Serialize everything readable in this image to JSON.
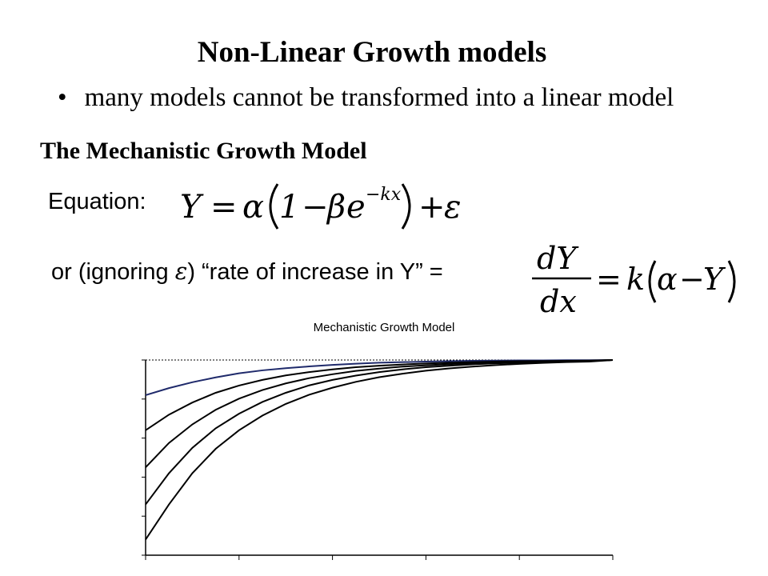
{
  "slide": {
    "title": "Non-Linear Growth models",
    "bullet_symbol": "•",
    "bullet_text": "many models cannot be transformed into a linear model",
    "subtitle": "The Mechanistic Growth Model",
    "equation_label": "Equation:",
    "rate_prefix": "or (ignoring ",
    "rate_epsilon": "ε",
    "rate_suffix": ") “rate of increase in Y” ="
  },
  "equation": {
    "lhs": "Y",
    "equals": "=",
    "alpha": "α",
    "one": "1",
    "minus": "−",
    "beta": "β",
    "e": "e",
    "exponent": "−kx",
    "plus": "+",
    "epsilon": "ε"
  },
  "derivative": {
    "numerator": "dY",
    "denominator": "dx",
    "equals": "=",
    "k": "k",
    "alpha": "α",
    "minus": "−",
    "y": "Y"
  },
  "chart_data": {
    "type": "line",
    "title": "Mechanistic Growth Model",
    "xlabel": "",
    "ylabel": "",
    "xlim": [
      0,
      5
    ],
    "ylim": [
      0,
      1
    ],
    "asymptote": 1,
    "grid": false,
    "legend": "none",
    "x": [
      0,
      0.25,
      0.5,
      0.75,
      1,
      1.25,
      1.5,
      1.75,
      2,
      2.25,
      2.5,
      2.75,
      3,
      3.25,
      3.5,
      3.75,
      4,
      4.25,
      4.5,
      4.75,
      5
    ],
    "series": [
      {
        "color": "#1f2a6b",
        "values": [
          0.82,
          0.856,
          0.886,
          0.911,
          0.932,
          0.947,
          0.958,
          0.967,
          0.975,
          0.981,
          0.986,
          0.989,
          0.992,
          0.994,
          0.996,
          0.997,
          0.998,
          0.998,
          0.999,
          0.999,
          1.0
        ]
      },
      {
        "color": "#000000",
        "values": [
          0.64,
          0.72,
          0.782,
          0.832,
          0.869,
          0.898,
          0.921,
          0.938,
          0.952,
          0.963,
          0.971,
          0.977,
          0.982,
          0.986,
          0.989,
          0.992,
          0.994,
          0.995,
          0.996,
          0.997,
          1.0
        ]
      },
      {
        "color": "#000000",
        "values": [
          0.45,
          0.575,
          0.67,
          0.745,
          0.802,
          0.846,
          0.88,
          0.907,
          0.927,
          0.944,
          0.956,
          0.966,
          0.973,
          0.979,
          0.984,
          0.988,
          0.99,
          0.993,
          0.995,
          0.996,
          1.0
        ]
      },
      {
        "color": "#000000",
        "values": [
          0.26,
          0.42,
          0.55,
          0.65,
          0.725,
          0.785,
          0.832,
          0.87,
          0.898,
          0.92,
          0.938,
          0.952,
          0.963,
          0.971,
          0.978,
          0.983,
          0.986,
          0.99,
          0.993,
          0.995,
          1.0
        ]
      },
      {
        "color": "#000000",
        "values": [
          0.08,
          0.26,
          0.42,
          0.545,
          0.64,
          0.715,
          0.775,
          0.822,
          0.858,
          0.888,
          0.912,
          0.93,
          0.945,
          0.957,
          0.966,
          0.974,
          0.98,
          0.985,
          0.989,
          0.992,
          1.0
        ]
      }
    ]
  }
}
